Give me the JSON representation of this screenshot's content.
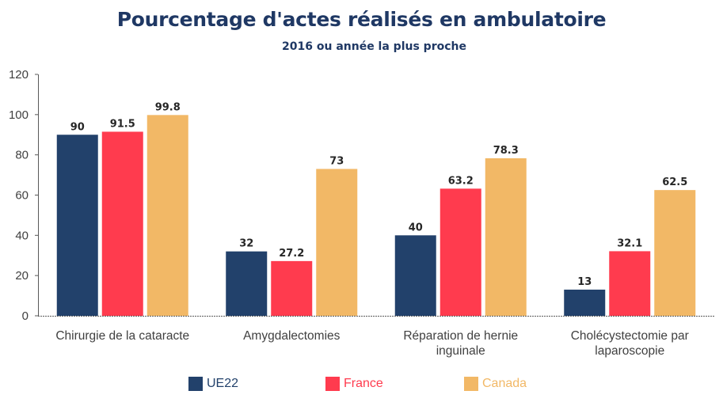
{
  "title": "Pourcentage d'actes réalisés en ambulatoire",
  "subtitle": "2016 ou année la plus proche",
  "colors": {
    "ue22": "#22416b",
    "france": "#ff3b4e",
    "canada": "#f2b866",
    "axis": "#595959",
    "text": "#404040"
  },
  "chart_data": {
    "type": "bar",
    "title": "Pourcentage d'actes réalisés en ambulatoire",
    "subtitle": "2016 ou année la plus proche",
    "categories": [
      [
        "Chirurgie de la cataracte"
      ],
      [
        "Amygdalectomies"
      ],
      [
        "Réparation de hernie",
        "inguinale"
      ],
      [
        "Cholécystectomie par",
        "laparoscopie"
      ]
    ],
    "series": [
      {
        "name": "UE22",
        "values": [
          90,
          32,
          40,
          13
        ],
        "labels": [
          "90",
          "32",
          "40",
          "13"
        ],
        "color": "#22416b"
      },
      {
        "name": "France",
        "values": [
          91.5,
          27.2,
          63.2,
          32.1
        ],
        "labels": [
          "91.5",
          "27.2",
          "63.2",
          "32.1"
        ],
        "color": "#ff3b4e"
      },
      {
        "name": "Canada",
        "values": [
          99.8,
          73,
          78.3,
          62.5
        ],
        "labels": [
          "99.8",
          "73",
          "78.3",
          "62.5"
        ],
        "color": "#f2b866"
      }
    ],
    "ylim": [
      0,
      120
    ],
    "yticks": [
      0,
      20,
      40,
      60,
      80,
      100,
      120
    ],
    "grid": false,
    "legend_position": "bottom"
  }
}
